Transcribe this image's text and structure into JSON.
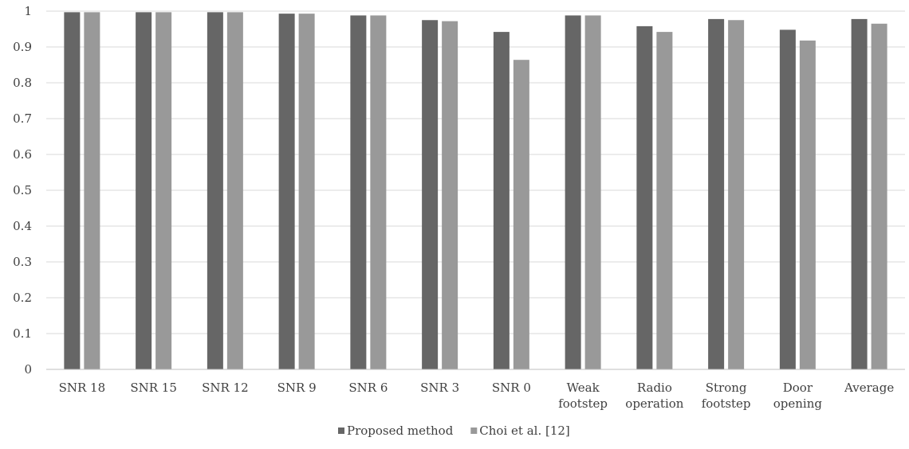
{
  "chart_data": {
    "type": "bar",
    "title": "",
    "xlabel": "",
    "ylabel": "",
    "ylim": [
      0,
      1
    ],
    "yticks": [
      "0",
      "0.1",
      "0.2",
      "0.3",
      "0.4",
      "0.5",
      "0.6",
      "0.7",
      "0.8",
      "0.9",
      "1"
    ],
    "grid": true,
    "legend_position": "bottom",
    "categories": [
      [
        "SNR 18"
      ],
      [
        "SNR 15"
      ],
      [
        "SNR 12"
      ],
      [
        "SNR 9"
      ],
      [
        "SNR 6"
      ],
      [
        "SNR 3"
      ],
      [
        "SNR 0"
      ],
      [
        "Weak",
        "footstep"
      ],
      [
        "Radio",
        "operation"
      ],
      [
        "Strong",
        "footstep"
      ],
      [
        "Door",
        "opening"
      ],
      [
        "Average"
      ]
    ],
    "series": [
      {
        "name": "Proposed method",
        "color": "#666666",
        "values": [
          0.997,
          0.997,
          0.997,
          0.993,
          0.988,
          0.975,
          0.942,
          0.988,
          0.958,
          0.978,
          0.948,
          0.978
        ]
      },
      {
        "name": "Choi et al. [12]",
        "color": "#999999",
        "values": [
          0.997,
          0.997,
          0.997,
          0.993,
          0.988,
          0.972,
          0.864,
          0.988,
          0.942,
          0.975,
          0.918,
          0.965
        ]
      }
    ]
  }
}
